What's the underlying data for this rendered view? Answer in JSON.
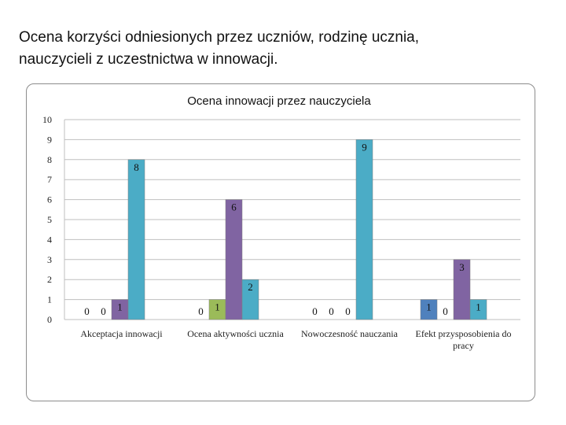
{
  "slide": {
    "title_line1": "Ocena korzyści odniesionych przez uczniów, rodzinę ucznia,",
    "title_line2": "nauczycieli z uczestnictwa w innowacji."
  },
  "chart_data": {
    "type": "bar",
    "title": "Ocena innowacji przez nauczyciela",
    "xlabel": "",
    "ylabel": "",
    "ylim": [
      0,
      10
    ],
    "yticks": [
      0,
      1,
      2,
      3,
      4,
      5,
      6,
      7,
      8,
      9,
      10
    ],
    "grid": true,
    "legend": "none",
    "categories": [
      "Akceptacja innowacji",
      "Ocena aktywności ucznia",
      "Nowoczesność nauczania",
      "Efekt przysposobienia do pracy"
    ],
    "category_lines": [
      [
        "Akceptacja innowacji"
      ],
      [
        "Ocena aktywności ucznia"
      ],
      [
        "Nowoczesność nauczania"
      ],
      [
        "Efekt przysposobienia do",
        "pracy"
      ]
    ],
    "series_colors": [
      "#4f81bd",
      "#9bbb59",
      "#8064a2",
      "#4bacc6"
    ],
    "series": [
      {
        "values": [
          0,
          0,
          0,
          1
        ]
      },
      {
        "values": [
          0,
          1,
          0,
          0
        ]
      },
      {
        "values": [
          1,
          6,
          0,
          3
        ]
      },
      {
        "values": [
          8,
          2,
          9,
          1
        ]
      }
    ]
  }
}
